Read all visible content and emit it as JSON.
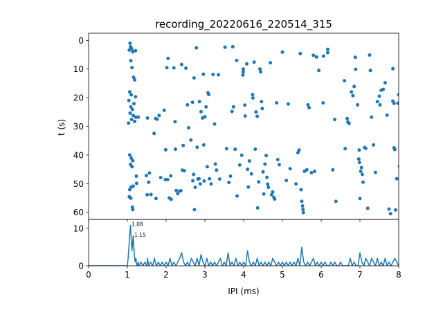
{
  "chart_data": [
    {
      "type": "scatter",
      "title": "recording_20220616_220514_315",
      "xlabel": "",
      "ylabel": "t (s)",
      "xlim": [
        0,
        8
      ],
      "ylim": [
        62.5,
        -2.5
      ],
      "y_ticks": [
        "0",
        "10",
        "20",
        "30",
        "40",
        "50",
        "60"
      ],
      "color": "#1f77b4",
      "points": [
        [
          1.07,
          1.0
        ],
        [
          1.08,
          2.2
        ],
        [
          1.11,
          2.9
        ],
        [
          1.05,
          3.4
        ],
        [
          1.14,
          4.0
        ],
        [
          1.21,
          3.6
        ],
        [
          1.09,
          7.1
        ],
        [
          1.12,
          9.5
        ],
        [
          1.16,
          12.9
        ],
        [
          1.19,
          13.8
        ],
        [
          1.06,
          18.0
        ],
        [
          1.1,
          19.0
        ],
        [
          1.21,
          19.7
        ],
        [
          1.04,
          21.0
        ],
        [
          1.17,
          22.1
        ],
        [
          1.09,
          23.2
        ],
        [
          1.13,
          24.1
        ],
        [
          1.07,
          25.4
        ],
        [
          1.15,
          26.2
        ],
        [
          1.22,
          26.8
        ],
        [
          1.11,
          27.6
        ],
        [
          1.03,
          28.9
        ],
        [
          1.19,
          28.3
        ],
        [
          1.06,
          40.0
        ],
        [
          1.1,
          41.1
        ],
        [
          1.14,
          42.0
        ],
        [
          1.08,
          43.3
        ],
        [
          1.12,
          44.1
        ],
        [
          1.23,
          47.4
        ],
        [
          1.1,
          51.2
        ],
        [
          1.06,
          52.1
        ],
        [
          1.15,
          50.9
        ],
        [
          1.05,
          54.6
        ],
        [
          1.09,
          55.1
        ],
        [
          1.13,
          58.2
        ],
        [
          1.14,
          59.1
        ],
        [
          1.24,
          49.9
        ],
        [
          1.28,
          26.8
        ],
        [
          1.52,
          27.1
        ],
        [
          1.77,
          27.5
        ],
        [
          1.73,
          27.3
        ],
        [
          1.82,
          26.2
        ],
        [
          1.95,
          24.4
        ],
        [
          1.69,
          32.5
        ],
        [
          1.99,
          38.2
        ],
        [
          2.02,
          9.5
        ],
        [
          2.05,
          6.3
        ],
        [
          2.2,
          9.6
        ],
        [
          2.23,
          28.4
        ],
        [
          2.24,
          38.0
        ],
        [
          2.26,
          52.4
        ],
        [
          2.3,
          53.5
        ],
        [
          2.35,
          52.6
        ],
        [
          2.38,
          52.5
        ],
        [
          1.86,
          47.9
        ],
        [
          1.98,
          48.6
        ],
        [
          2.04,
          48.6
        ],
        [
          2.12,
          47.3
        ],
        [
          2.08,
          55.0
        ],
        [
          2.13,
          55.5
        ],
        [
          1.51,
          53.9
        ],
        [
          1.61,
          53.8
        ],
        [
          1.74,
          55.2
        ],
        [
          1.55,
          49.5
        ],
        [
          1.49,
          47.2
        ],
        [
          1.57,
          46.3
        ],
        [
          2.4,
          8.4
        ],
        [
          2.51,
          9.7
        ],
        [
          2.44,
          36.7
        ],
        [
          2.47,
          45.5
        ],
        [
          2.42,
          45.3
        ],
        [
          2.55,
          22.5
        ],
        [
          2.58,
          30.5
        ],
        [
          2.64,
          34.8
        ],
        [
          2.68,
          21.6
        ],
        [
          2.72,
          13.1
        ],
        [
          2.71,
          46.8
        ],
        [
          2.69,
          49.0
        ],
        [
          2.75,
          51.3
        ],
        [
          2.78,
          2.6
        ],
        [
          2.8,
          37.3
        ],
        [
          2.82,
          48.4
        ],
        [
          2.86,
          21.4
        ],
        [
          2.9,
          24.9
        ],
        [
          2.94,
          27.1
        ],
        [
          2.96,
          11.8
        ],
        [
          2.97,
          36.5
        ],
        [
          2.98,
          49.1
        ],
        [
          2.88,
          50.1
        ],
        [
          2.85,
          48.3
        ],
        [
          2.73,
          59.1
        ],
        [
          3.0,
          26.7
        ],
        [
          3.03,
          23.2
        ],
        [
          3.06,
          44.1
        ],
        [
          3.08,
          18.3
        ],
        [
          3.1,
          18.9
        ],
        [
          3.12,
          48.3
        ],
        [
          3.16,
          50.1
        ],
        [
          3.21,
          11.9
        ],
        [
          3.25,
          29.2
        ],
        [
          3.27,
          43.2
        ],
        [
          3.3,
          45.3
        ],
        [
          3.35,
          12.0
        ],
        [
          3.38,
          48.4
        ],
        [
          3.52,
          2.4
        ],
        [
          3.56,
          37.8
        ],
        [
          3.62,
          49.6
        ],
        [
          3.66,
          47.4
        ],
        [
          3.7,
          24.8
        ],
        [
          3.72,
          2.2
        ],
        [
          3.74,
          23.2
        ],
        [
          3.78,
          38.0
        ],
        [
          3.82,
          7.0
        ],
        [
          3.83,
          54.3
        ],
        [
          3.9,
          43.5
        ],
        [
          3.95,
          40.1
        ],
        [
          3.99,
          10.0
        ],
        [
          3.98,
          12.1
        ],
        [
          3.99,
          11.0
        ],
        [
          4.03,
          22.6
        ],
        [
          4.04,
          26.4
        ],
        [
          4.08,
          8.2
        ],
        [
          4.1,
          45.0
        ],
        [
          4.12,
          51.2
        ],
        [
          4.15,
          42.1
        ],
        [
          4.2,
          46.6
        ],
        [
          4.23,
          18.9
        ],
        [
          4.24,
          20.1
        ],
        [
          4.27,
          7.6
        ],
        [
          4.3,
          38.0
        ],
        [
          4.32,
          25.0
        ],
        [
          4.35,
          26.5
        ],
        [
          4.36,
          58.5
        ],
        [
          4.39,
          49.4
        ],
        [
          4.42,
          10.0
        ],
        [
          4.44,
          11.0
        ],
        [
          4.46,
          21.4
        ],
        [
          4.48,
          23.8
        ],
        [
          4.5,
          45.9
        ],
        [
          4.52,
          53.6
        ],
        [
          4.55,
          43.2
        ],
        [
          4.58,
          40.2
        ],
        [
          4.6,
          47.8
        ],
        [
          4.62,
          50.2
        ],
        [
          4.64,
          51.3
        ],
        [
          4.69,
          7.8
        ],
        [
          4.72,
          53.9
        ],
        [
          4.75,
          52.9
        ],
        [
          4.78,
          54.8
        ],
        [
          4.8,
          55.4
        ],
        [
          4.85,
          21.8
        ],
        [
          4.88,
          41.6
        ],
        [
          4.92,
          43.4
        ],
        [
          5.0,
          4.1
        ],
        [
          5.1,
          48.9
        ],
        [
          5.15,
          22.2
        ],
        [
          5.2,
          44.8
        ],
        [
          5.35,
          50.1
        ],
        [
          5.4,
          39.2
        ],
        [
          5.43,
          38.3
        ],
        [
          5.46,
          4.6
        ],
        [
          5.48,
          52.1
        ],
        [
          5.5,
          56.2
        ],
        [
          5.52,
          57.8
        ],
        [
          5.53,
          59.0
        ],
        [
          5.54,
          60.1
        ],
        [
          5.57,
          45.7
        ],
        [
          5.63,
          45.2
        ],
        [
          5.66,
          22.5
        ],
        [
          5.69,
          23.5
        ],
        [
          5.75,
          46.2
        ],
        [
          5.8,
          5.2
        ],
        [
          5.83,
          45.7
        ],
        [
          5.88,
          5.8
        ],
        [
          5.94,
          10.5
        ],
        [
          6.05,
          21.8
        ],
        [
          6.06,
          5.5
        ],
        [
          6.17,
          4.3
        ],
        [
          6.17,
          3.1
        ],
        [
          6.3,
          45.2
        ],
        [
          6.35,
          27.6
        ],
        [
          6.38,
          56.2
        ],
        [
          6.6,
          14.1
        ],
        [
          6.62,
          37.8
        ],
        [
          6.67,
          27.3
        ],
        [
          6.69,
          28.5
        ],
        [
          6.72,
          29.0
        ],
        [
          6.78,
          18.0
        ],
        [
          6.82,
          19.3
        ],
        [
          6.85,
          16.1
        ],
        [
          6.88,
          5.9
        ],
        [
          6.89,
          10.1
        ],
        [
          6.94,
          22.5
        ],
        [
          6.97,
          41.4
        ],
        [
          6.98,
          38.3
        ],
        [
          6.99,
          42.6
        ],
        [
          7.0,
          55.2
        ],
        [
          7.02,
          45.7
        ],
        [
          7.04,
          44.4
        ],
        [
          7.06,
          46.8
        ],
        [
          7.08,
          49.5
        ],
        [
          7.12,
          37.4
        ],
        [
          7.15,
          37.7
        ],
        [
          7.2,
          58.6
        ],
        [
          7.25,
          5.1
        ],
        [
          7.27,
          10.5
        ],
        [
          7.3,
          26.8
        ],
        [
          7.35,
          36.5
        ],
        [
          7.4,
          46.1
        ],
        [
          7.45,
          21.4
        ],
        [
          7.5,
          19.5
        ],
        [
          7.52,
          22.5
        ],
        [
          7.55,
          17.4
        ],
        [
          7.6,
          17.1
        ],
        [
          7.65,
          14.8
        ],
        [
          7.7,
          26.1
        ],
        [
          7.75,
          58.9
        ],
        [
          7.79,
          60.5
        ],
        [
          7.85,
          9.9
        ],
        [
          7.88,
          37.5
        ],
        [
          7.9,
          38.1
        ],
        [
          7.92,
          59.2
        ],
        [
          7.95,
          48.3
        ],
        [
          7.98,
          21.9
        ],
        [
          8.0,
          18.9
        ],
        [
          8.02,
          44.0
        ],
        [
          7.85,
          21.2
        ],
        [
          7.88,
          22.0
        ]
      ]
    },
    {
      "type": "line",
      "xlabel": "IPI (ms)",
      "ylabel": "",
      "xlim": [
        0,
        8
      ],
      "ylim": [
        0,
        12.4
      ],
      "x_ticks": [
        "0",
        "1",
        "2",
        "3",
        "4",
        "5",
        "6",
        "7",
        "8"
      ],
      "y_ticks": [
        "0",
        "10"
      ],
      "color": "#1f77b4",
      "annotations": [
        {
          "text": "1.08",
          "x": 1.08,
          "y": 10.8
        },
        {
          "text": "1.15",
          "x": 1.15,
          "y": 8.0
        }
      ],
      "x": [
        0,
        1.0,
        1.02,
        1.04,
        1.06,
        1.08,
        1.1,
        1.12,
        1.15,
        1.18,
        1.2,
        1.22,
        1.25,
        1.28,
        1.3,
        1.35,
        1.4,
        1.45,
        1.5,
        1.52,
        1.55,
        1.6,
        1.65,
        1.7,
        1.72,
        1.75,
        1.8,
        1.85,
        1.9,
        1.95,
        2.0,
        2.05,
        2.1,
        2.15,
        2.2,
        2.25,
        2.3,
        2.35,
        2.4,
        2.45,
        2.5,
        2.55,
        2.6,
        2.65,
        2.7,
        2.75,
        2.8,
        2.85,
        2.9,
        2.95,
        3.0,
        3.05,
        3.1,
        3.15,
        3.2,
        3.25,
        3.3,
        3.35,
        3.4,
        3.45,
        3.5,
        3.55,
        3.6,
        3.65,
        3.7,
        3.75,
        3.8,
        3.85,
        3.9,
        3.95,
        4.0,
        4.05,
        4.1,
        4.15,
        4.2,
        4.25,
        4.3,
        4.35,
        4.4,
        4.45,
        4.5,
        4.55,
        4.6,
        4.65,
        4.7,
        4.75,
        4.8,
        4.85,
        4.9,
        4.95,
        5.0,
        5.05,
        5.1,
        5.15,
        5.2,
        5.25,
        5.3,
        5.35,
        5.4,
        5.45,
        5.5,
        5.55,
        5.6,
        5.65,
        5.7,
        5.75,
        5.8,
        5.85,
        5.9,
        5.95,
        6.0,
        6.05,
        6.1,
        6.15,
        6.2,
        6.25,
        6.3,
        6.35,
        6.4,
        6.45,
        6.5,
        6.55,
        6.6,
        6.65,
        6.7,
        6.75,
        6.8,
        6.85,
        6.9,
        6.95,
        7.0,
        7.05,
        7.1,
        7.15,
        7.2,
        7.25,
        7.3,
        7.35,
        7.4,
        7.45,
        7.5,
        7.55,
        7.6,
        7.65,
        7.7,
        7.75,
        7.8,
        7.85,
        7.9,
        7.95,
        8.0
      ],
      "y": [
        0,
        0,
        2.0,
        5.0,
        8.5,
        10.8,
        7.0,
        4.0,
        8.0,
        3.0,
        1.0,
        2.0,
        0,
        1.0,
        0,
        1.0,
        0,
        1.0,
        0,
        2.0,
        0,
        1.0,
        0,
        2.0,
        1.0,
        0,
        1.0,
        0,
        1.0,
        0,
        1.0,
        0,
        2.0,
        0,
        1.0,
        0,
        1.0,
        2.0,
        3.5,
        1.0,
        0,
        1.0,
        0,
        2.0,
        1.0,
        0,
        2.0,
        0,
        3.0,
        1.0,
        0,
        2.0,
        0,
        1.0,
        0,
        1.0,
        0,
        1.0,
        2.0,
        0,
        1.0,
        0,
        3.5,
        0,
        1.0,
        0,
        2.0,
        0,
        1.0,
        0,
        1.0,
        0,
        4.0,
        1.0,
        0,
        1.0,
        0,
        2.0,
        0,
        1.0,
        0,
        1.0,
        0,
        1.0,
        0,
        2.0,
        1.0,
        0,
        1.0,
        0,
        1.0,
        0,
        1.0,
        0,
        1.0,
        0,
        1.0,
        0,
        2.0,
        0,
        5.0,
        1.0,
        0,
        1.0,
        0,
        1.0,
        2.0,
        0,
        1.0,
        0,
        1.0,
        0,
        1.0,
        0,
        0,
        1.0,
        0,
        1.0,
        0,
        0,
        1.0,
        0,
        0,
        0,
        0,
        2.0,
        0,
        1.0,
        0,
        0,
        3.5,
        1.0,
        0,
        2.0,
        1.0,
        0,
        2.0,
        1.0,
        0,
        2.0,
        0,
        1.0,
        0,
        2.0,
        0,
        1.0,
        0,
        1.0,
        2.0,
        1.0,
        0
      ]
    }
  ]
}
